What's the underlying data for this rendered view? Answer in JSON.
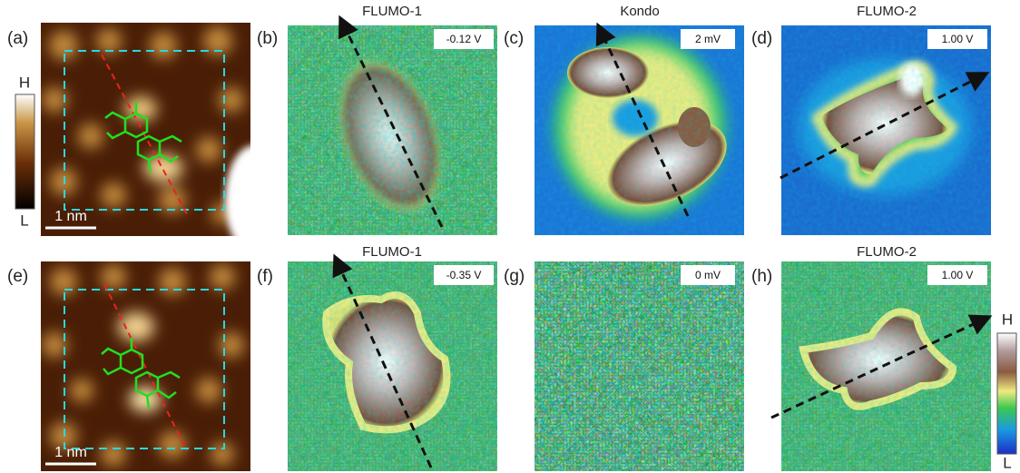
{
  "panels": [
    {
      "label": "(a)",
      "scale_bar": "1 nm"
    },
    {
      "label": "(b)",
      "title": "FLUMO-1",
      "bias": "-0.12 V"
    },
    {
      "label": "(c)",
      "title": "Kondo",
      "bias": "2 mV"
    },
    {
      "label": "(d)",
      "title": "FLUMO-2",
      "bias": "1.00 V"
    },
    {
      "label": "(e)",
      "scale_bar": "1 nm"
    },
    {
      "label": "(f)",
      "title": "FLUMO-1",
      "bias": "-0.35 V"
    },
    {
      "label": "(g)",
      "bias": "0 mV"
    },
    {
      "label": "(h)",
      "title": "FLUMO-2",
      "bias": "1.00 V"
    }
  ],
  "colorbars": [
    {
      "high": "H",
      "low": "L"
    },
    {
      "high": "H",
      "low": "L"
    }
  ]
}
